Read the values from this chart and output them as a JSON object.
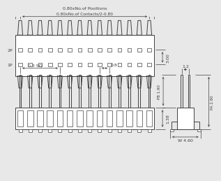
{
  "bg_color": "#e8e8e8",
  "line_color": "#404040",
  "dim_color": "#404040",
  "small_font": 4.5,
  "n_pins": 14,
  "fig_w": 3.0,
  "fig_h": 2.38,
  "top_view": {
    "dim1_text": "0.80xNo.of Positions",
    "dim2_text": "0.80xNo.of Contacts/2-0.80",
    "dim_side_text": "3.00",
    "row2_label": "2P",
    "row1_label": "1P"
  },
  "front_view": {
    "dim1_text": "0.3 SQ",
    "dim2_text": "0.8",
    "dim_side_text": "1.38"
  },
  "side_view": {
    "dim_top": "1.2",
    "dim_left": "PB 1.90",
    "dim_right": "PA 2.80",
    "dim_bot": "W 4.60"
  }
}
